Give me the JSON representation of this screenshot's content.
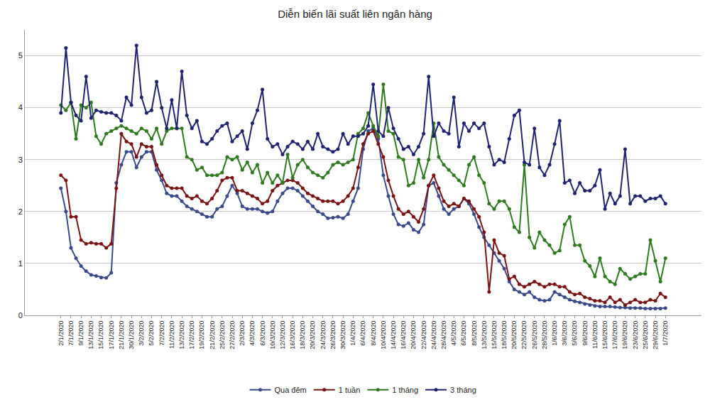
{
  "chart_data": {
    "type": "line",
    "title": "Diễn biến lãi suất liên ngân hàng",
    "categories": [
      "2/1/2020",
      null,
      "7/1/2020",
      null,
      "9/1/2020",
      null,
      "13/1/2020",
      null,
      "15/1/2020",
      null,
      "17/1/2020",
      null,
      "21/1/2020",
      null,
      "30/1/2020",
      null,
      "3/2/2020",
      null,
      "5/2/2020",
      null,
      "7/2/2020",
      null,
      "11/2/2020",
      null,
      "13/2/2020",
      null,
      "17/2/2020",
      null,
      "19/2/2020",
      null,
      "21/2/2020",
      null,
      "25/2/2020",
      null,
      "27/2/2020",
      null,
      "2/3/2020",
      null,
      "4/3/2020",
      null,
      "6/3/2020",
      null,
      "10/3/2020",
      null,
      "12/3/2020",
      null,
      "16/3/2020",
      null,
      "18/3/2020",
      null,
      "20/3/2020",
      null,
      "24/3/2020",
      null,
      "26/3/2020",
      null,
      "30/3/2020",
      null,
      "1/4/2020",
      null,
      "6/4/2020",
      null,
      "8/4/2020",
      null,
      "10/4/2020",
      null,
      "14/4/2020",
      null,
      "16/4/2020",
      null,
      "20/4/2020",
      null,
      "22/4/2020",
      null,
      "24/4/2020",
      null,
      "28/4/2020",
      null,
      "4/5/2020",
      null,
      "6/5/2020",
      null,
      "8/5/2020",
      null,
      "13/5/2020",
      null,
      "15/5/2020",
      null,
      "18/5/2020",
      null,
      "20/5/2020",
      null,
      "22/5/2020",
      null,
      "26/5/2020",
      null,
      "28/5/2020",
      null,
      "1/6/2020",
      null,
      "3/6/2020",
      null,
      "5/6/2020",
      null,
      "9/6/2020",
      null,
      "11/6/2020",
      null,
      "15/6/2020",
      null,
      "17/6/2020",
      null,
      "19/6/2020",
      null,
      "23/6/2020",
      null,
      "25/6/2020",
      null,
      "29/6/2020",
      null,
      "1/7/2020"
    ],
    "series": [
      {
        "name": "Qua đêm",
        "color": "#3a4a8a",
        "values": [
          2.45,
          2.0,
          1.3,
          1.1,
          0.95,
          0.85,
          0.78,
          0.76,
          0.73,
          0.72,
          0.82,
          2.55,
          2.9,
          3.15,
          3.15,
          2.85,
          3.05,
          3.15,
          3.15,
          2.8,
          2.6,
          2.35,
          2.3,
          2.3,
          2.2,
          2.1,
          2.05,
          2.0,
          1.95,
          1.9,
          1.9,
          2.05,
          2.1,
          2.3,
          2.5,
          2.35,
          2.1,
          2.05,
          2.05,
          2.05,
          2.0,
          1.97,
          2.0,
          2.2,
          2.35,
          2.45,
          2.45,
          2.4,
          2.3,
          2.2,
          2.1,
          2.0,
          1.95,
          1.87,
          1.88,
          1.9,
          1.87,
          1.95,
          2.2,
          2.45,
          3.2,
          3.55,
          3.6,
          3.4,
          2.7,
          2.3,
          1.95,
          1.75,
          1.72,
          1.78,
          1.65,
          1.6,
          1.75,
          2.5,
          2.55,
          2.3,
          2.05,
          1.95,
          2.05,
          2.1,
          2.25,
          2.15,
          1.95,
          1.7,
          1.5,
          1.35,
          1.2,
          1.05,
          0.9,
          0.65,
          0.5,
          0.45,
          0.4,
          0.45,
          0.35,
          0.3,
          0.28,
          0.3,
          0.45,
          0.4,
          0.35,
          0.3,
          0.27,
          0.25,
          0.22,
          0.2,
          0.18,
          0.17,
          0.17,
          0.17,
          0.16,
          0.15,
          0.15,
          0.14,
          0.14,
          0.14,
          0.13,
          0.13,
          0.13,
          0.13,
          0.14
        ]
      },
      {
        "name": "1 tuần",
        "color": "#7a1414",
        "values": [
          2.7,
          2.6,
          1.9,
          1.9,
          1.45,
          1.38,
          1.4,
          1.38,
          1.38,
          1.3,
          1.38,
          2.45,
          3.5,
          3.35,
          3.3,
          3.05,
          3.3,
          3.25,
          3.25,
          2.9,
          2.7,
          2.5,
          2.45,
          2.45,
          2.45,
          2.3,
          2.25,
          2.3,
          2.2,
          2.15,
          2.25,
          2.4,
          2.6,
          2.65,
          2.65,
          2.4,
          2.4,
          2.35,
          2.3,
          2.25,
          2.15,
          2.2,
          2.4,
          2.5,
          2.55,
          2.6,
          2.6,
          2.55,
          2.45,
          2.35,
          2.3,
          2.25,
          2.2,
          2.2,
          2.2,
          2.15,
          2.2,
          2.3,
          2.45,
          2.85,
          3.3,
          3.5,
          3.55,
          3.3,
          3.05,
          2.6,
          2.3,
          2.05,
          1.95,
          2.0,
          1.9,
          1.8,
          2.05,
          2.5,
          2.7,
          2.45,
          2.2,
          2.1,
          2.15,
          2.1,
          2.25,
          2.2,
          2.05,
          1.9,
          1.6,
          0.45,
          1.45,
          1.2,
          1.15,
          0.7,
          0.75,
          0.6,
          0.55,
          0.6,
          0.65,
          0.6,
          0.55,
          0.6,
          0.6,
          0.55,
          0.55,
          0.45,
          0.4,
          0.42,
          0.35,
          0.32,
          0.28,
          0.28,
          0.25,
          0.35,
          0.25,
          0.3,
          0.2,
          0.25,
          0.3,
          0.25,
          0.25,
          0.3,
          0.28,
          0.42,
          0.35
        ]
      },
      {
        "name": "1 tháng",
        "color": "#2f7a1f",
        "values": [
          4.05,
          3.95,
          4.1,
          3.4,
          4.05,
          4.0,
          4.1,
          3.45,
          3.3,
          3.5,
          3.55,
          3.6,
          3.65,
          3.6,
          3.55,
          3.5,
          3.6,
          3.55,
          3.4,
          3.6,
          3.3,
          3.55,
          3.6,
          3.6,
          3.6,
          3.05,
          3.0,
          2.8,
          2.85,
          2.7,
          2.7,
          2.7,
          2.75,
          3.05,
          3.0,
          3.05,
          2.8,
          2.95,
          2.75,
          2.9,
          2.55,
          2.75,
          2.55,
          2.7,
          2.55,
          3.1,
          2.65,
          2.9,
          3.0,
          2.85,
          2.75,
          2.7,
          2.65,
          2.75,
          2.9,
          2.95,
          2.9,
          2.95,
          3.0,
          3.5,
          3.6,
          3.9,
          3.65,
          3.45,
          4.45,
          3.55,
          3.5,
          3.05,
          3.0,
          2.5,
          2.55,
          3.0,
          2.65,
          3.0,
          3.7,
          3.05,
          2.9,
          2.8,
          2.7,
          2.6,
          2.5,
          2.9,
          3.05,
          2.7,
          2.55,
          2.15,
          2.05,
          2.2,
          2.2,
          2.05,
          1.7,
          1.6,
          2.9,
          1.5,
          1.3,
          1.6,
          1.45,
          1.35,
          1.2,
          1.25,
          1.75,
          1.9,
          1.35,
          1.35,
          1.05,
          0.95,
          0.75,
          1.1,
          0.75,
          0.65,
          0.6,
          0.9,
          0.8,
          0.7,
          0.75,
          0.8,
          0.8,
          1.45,
          1.05,
          0.65,
          1.1
        ]
      },
      {
        "name": "3 tháng",
        "color": "#1f2370",
        "values": [
          3.9,
          5.15,
          4.1,
          3.85,
          3.75,
          4.6,
          3.8,
          3.95,
          3.92,
          3.9,
          3.9,
          3.85,
          3.75,
          4.2,
          4.05,
          5.2,
          4.2,
          3.9,
          3.95,
          4.5,
          4.0,
          3.6,
          4.15,
          3.6,
          4.7,
          3.85,
          3.6,
          3.75,
          3.35,
          3.3,
          3.4,
          3.55,
          3.65,
          3.7,
          3.35,
          3.45,
          3.55,
          3.2,
          3.7,
          3.95,
          4.35,
          3.4,
          3.25,
          3.3,
          3.1,
          3.25,
          3.35,
          3.3,
          3.2,
          3.35,
          3.2,
          3.5,
          3.25,
          3.2,
          3.15,
          3.2,
          3.5,
          3.3,
          3.45,
          3.45,
          3.5,
          3.65,
          4.45,
          3.55,
          3.45,
          4.0,
          3.6,
          3.4,
          3.2,
          3.25,
          3.1,
          3.25,
          3.5,
          4.6,
          3.45,
          3.7,
          3.55,
          3.5,
          4.2,
          3.25,
          3.7,
          3.55,
          3.7,
          3.6,
          3.7,
          3.25,
          2.9,
          3.0,
          2.95,
          3.4,
          3.85,
          3.95,
          2.95,
          2.9,
          3.6,
          2.85,
          2.7,
          2.9,
          3.3,
          3.75,
          2.55,
          2.6,
          2.35,
          2.55,
          2.4,
          2.4,
          2.5,
          2.8,
          2.05,
          2.35,
          2.15,
          2.3,
          3.2,
          2.15,
          2.3,
          2.3,
          2.2,
          2.25,
          2.25,
          2.3,
          2.15
        ]
      }
    ],
    "ylim": [
      0,
      5.5
    ],
    "yticks": [
      0,
      1,
      2,
      3,
      4,
      5
    ],
    "grid": true,
    "legend": "bottom",
    "marker": "circle"
  }
}
